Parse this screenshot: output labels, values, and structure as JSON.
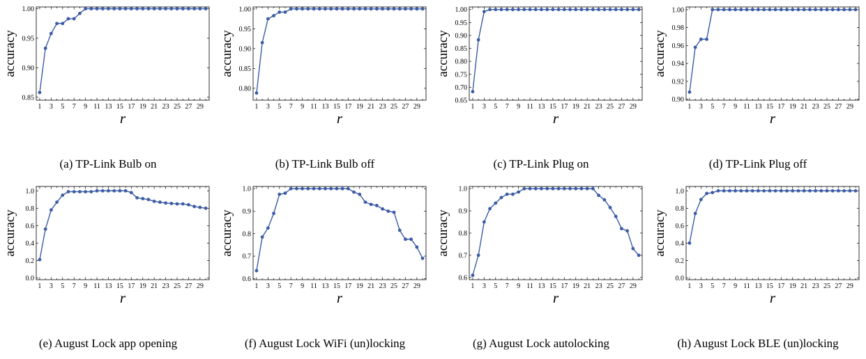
{
  "chart_data": [
    {
      "type": "line",
      "caption": "(a)  TP-Link Bulb on",
      "xlabel": "r",
      "ylabel": "accuracy",
      "x": [
        1,
        2,
        3,
        4,
        5,
        6,
        7,
        8,
        9,
        10,
        11,
        12,
        13,
        14,
        15,
        16,
        17,
        18,
        19,
        20,
        21,
        22,
        23,
        24,
        25,
        26,
        27,
        28,
        29,
        30
      ],
      "values": [
        0.858,
        0.933,
        0.958,
        0.975,
        0.975,
        0.983,
        0.983,
        0.992,
        1.0,
        1.0,
        1.0,
        1.0,
        1.0,
        1.0,
        1.0,
        1.0,
        1.0,
        1.0,
        1.0,
        1.0,
        1.0,
        1.0,
        1.0,
        1.0,
        1.0,
        1.0,
        1.0,
        1.0,
        1.0,
        1.0
      ],
      "xticks": [
        1,
        3,
        5,
        7,
        9,
        11,
        13,
        15,
        17,
        19,
        21,
        23,
        25,
        27,
        29
      ],
      "yticks": [
        0.85,
        0.9,
        0.95,
        1.0
      ],
      "ytick_labels": [
        "0.85",
        "0.90",
        "0.95",
        "1.00"
      ],
      "ylim": [
        0.845,
        1.003
      ]
    },
    {
      "type": "line",
      "caption": "(b)  TP-Link Bulb off",
      "xlabel": "r",
      "ylabel": "accuracy",
      "x": [
        1,
        2,
        3,
        4,
        5,
        6,
        7,
        8,
        9,
        10,
        11,
        12,
        13,
        14,
        15,
        16,
        17,
        18,
        19,
        20,
        21,
        22,
        23,
        24,
        25,
        26,
        27,
        28,
        29,
        30
      ],
      "values": [
        0.788,
        0.915,
        0.975,
        0.983,
        0.992,
        0.992,
        1.0,
        1.0,
        1.0,
        1.0,
        1.0,
        1.0,
        1.0,
        1.0,
        1.0,
        1.0,
        1.0,
        1.0,
        1.0,
        1.0,
        1.0,
        1.0,
        1.0,
        1.0,
        1.0,
        1.0,
        1.0,
        1.0,
        1.0,
        1.0
      ],
      "xticks": [
        1,
        3,
        5,
        7,
        9,
        11,
        13,
        15,
        17,
        19,
        21,
        23,
        25,
        27,
        29
      ],
      "yticks": [
        0.8,
        0.85,
        0.9,
        0.95,
        1.0
      ],
      "ytick_labels": [
        "0.80",
        "0.85",
        "0.90",
        "0.95",
        "1.00"
      ],
      "ylim": [
        0.77,
        1.005
      ]
    },
    {
      "type": "line",
      "caption": "(c)  TP-Link Plug on",
      "xlabel": "r",
      "ylabel": "accuracy",
      "x": [
        1,
        2,
        3,
        4,
        5,
        6,
        7,
        8,
        9,
        10,
        11,
        12,
        13,
        14,
        15,
        16,
        17,
        18,
        19,
        20,
        21,
        22,
        23,
        24,
        25,
        26,
        27,
        28,
        29,
        30
      ],
      "values": [
        0.683,
        0.883,
        0.992,
        1.0,
        1.0,
        1.0,
        1.0,
        1.0,
        1.0,
        1.0,
        1.0,
        1.0,
        1.0,
        1.0,
        1.0,
        1.0,
        1.0,
        1.0,
        1.0,
        1.0,
        1.0,
        1.0,
        1.0,
        1.0,
        1.0,
        1.0,
        1.0,
        1.0,
        1.0,
        1.0
      ],
      "xticks": [
        1,
        3,
        5,
        7,
        9,
        11,
        13,
        15,
        17,
        19,
        21,
        23,
        25,
        27,
        29
      ],
      "yticks": [
        0.65,
        0.7,
        0.75,
        0.8,
        0.85,
        0.9,
        0.95,
        1.0
      ],
      "ytick_labels": [
        "0.65",
        "0.70",
        "0.75",
        "0.80",
        "0.85",
        "0.90",
        "0.95",
        "1.00"
      ],
      "ylim": [
        0.65,
        1.01
      ]
    },
    {
      "type": "line",
      "caption": "(d)  TP-Link Plug off",
      "xlabel": "r",
      "ylabel": "accuracy",
      "x": [
        1,
        2,
        3,
        4,
        5,
        6,
        7,
        8,
        9,
        10,
        11,
        12,
        13,
        14,
        15,
        16,
        17,
        18,
        19,
        20,
        21,
        22,
        23,
        24,
        25,
        26,
        27,
        28,
        29,
        30
      ],
      "values": [
        0.908,
        0.958,
        0.967,
        0.967,
        1.0,
        1.0,
        1.0,
        1.0,
        1.0,
        1.0,
        1.0,
        1.0,
        1.0,
        1.0,
        1.0,
        1.0,
        1.0,
        1.0,
        1.0,
        1.0,
        1.0,
        1.0,
        1.0,
        1.0,
        1.0,
        1.0,
        1.0,
        1.0,
        1.0,
        1.0
      ],
      "xticks": [
        1,
        3,
        5,
        7,
        9,
        11,
        13,
        15,
        17,
        19,
        21,
        23,
        25,
        27,
        29
      ],
      "yticks": [
        0.9,
        0.92,
        0.94,
        0.96,
        0.98,
        1.0
      ],
      "ytick_labels": [
        "0.90",
        "0.92",
        "0.94",
        "0.96",
        "0.98",
        "1.00"
      ],
      "ylim": [
        0.899,
        1.003
      ]
    },
    {
      "type": "line",
      "caption": "(e)  August Lock app opening",
      "xlabel": "r",
      "ylabel": "accuracy",
      "x": [
        1,
        2,
        3,
        4,
        5,
        6,
        7,
        8,
        9,
        10,
        11,
        12,
        13,
        14,
        15,
        16,
        17,
        18,
        19,
        20,
        21,
        22,
        23,
        24,
        25,
        26,
        27,
        28,
        29,
        30
      ],
      "values": [
        0.21,
        0.56,
        0.78,
        0.87,
        0.95,
        0.99,
        0.99,
        0.99,
        0.99,
        0.99,
        1.0,
        1.0,
        1.0,
        1.0,
        1.0,
        1.0,
        0.98,
        0.92,
        0.91,
        0.9,
        0.88,
        0.87,
        0.86,
        0.855,
        0.85,
        0.85,
        0.84,
        0.82,
        0.81,
        0.8
      ],
      "xticks": [
        1,
        3,
        5,
        7,
        9,
        11,
        13,
        15,
        17,
        19,
        21,
        23,
        25,
        27,
        29
      ],
      "yticks": [
        0.0,
        0.2,
        0.4,
        0.6,
        0.8,
        1.0
      ],
      "ytick_labels": [
        "0.0",
        "0.2",
        "0.4",
        "0.6",
        "0.8",
        "1.0"
      ],
      "ylim": [
        -0.02,
        1.05
      ]
    },
    {
      "type": "line",
      "caption": "(f)  August Lock WiFi (un)locking",
      "xlabel": "r",
      "ylabel": "accuracy",
      "x": [
        1,
        2,
        3,
        4,
        5,
        6,
        7,
        8,
        9,
        10,
        11,
        12,
        13,
        14,
        15,
        16,
        17,
        18,
        19,
        20,
        21,
        22,
        23,
        24,
        25,
        26,
        27,
        28,
        29,
        30
      ],
      "values": [
        0.635,
        0.785,
        0.825,
        0.89,
        0.975,
        0.98,
        1.0,
        1.0,
        1.0,
        1.0,
        1.0,
        1.0,
        1.0,
        1.0,
        1.0,
        1.0,
        1.0,
        0.985,
        0.975,
        0.94,
        0.93,
        0.925,
        0.91,
        0.9,
        0.895,
        0.815,
        0.775,
        0.775,
        0.74,
        0.69
      ],
      "xticks": [
        1,
        3,
        5,
        7,
        9,
        11,
        13,
        15,
        17,
        19,
        21,
        23,
        25,
        27,
        29
      ],
      "yticks": [
        0.6,
        0.7,
        0.8,
        0.9,
        1.0
      ],
      "ytick_labels": [
        "0.6",
        "0.7",
        "0.8",
        "0.9",
        "1.0"
      ],
      "ylim": [
        0.595,
        1.01
      ]
    },
    {
      "type": "line",
      "caption": "(g)  August Lock autolocking",
      "xlabel": "r",
      "ylabel": "accuracy",
      "x": [
        1,
        2,
        3,
        4,
        5,
        6,
        7,
        8,
        9,
        10,
        11,
        12,
        13,
        14,
        15,
        16,
        17,
        18,
        19,
        20,
        21,
        22,
        23,
        24,
        25,
        26,
        27,
        28,
        29,
        30
      ],
      "values": [
        0.61,
        0.7,
        0.85,
        0.91,
        0.935,
        0.96,
        0.975,
        0.975,
        0.985,
        1.0,
        1.0,
        1.0,
        1.0,
        1.0,
        1.0,
        1.0,
        1.0,
        1.0,
        1.0,
        1.0,
        1.0,
        1.0,
        0.97,
        0.95,
        0.915,
        0.875,
        0.82,
        0.81,
        0.73,
        0.7
      ],
      "xticks": [
        1,
        3,
        5,
        7,
        9,
        11,
        13,
        15,
        17,
        19,
        21,
        23,
        25,
        27,
        29
      ],
      "yticks": [
        0.6,
        0.7,
        0.8,
        0.9,
        1.0
      ],
      "ytick_labels": [
        "0.6",
        "0.7",
        "0.8",
        "0.9",
        "1.0"
      ],
      "ylim": [
        0.59,
        1.01
      ]
    },
    {
      "type": "line",
      "caption": "(h)  August Lock BLE (un)locking",
      "xlabel": "r",
      "ylabel": "accuracy",
      "x": [
        1,
        2,
        3,
        4,
        5,
        6,
        7,
        8,
        9,
        10,
        11,
        12,
        13,
        14,
        15,
        16,
        17,
        18,
        19,
        20,
        21,
        22,
        23,
        24,
        25,
        26,
        27,
        28,
        29,
        30
      ],
      "values": [
        0.4,
        0.74,
        0.9,
        0.97,
        0.98,
        1.0,
        1.0,
        1.0,
        1.0,
        1.0,
        1.0,
        1.0,
        1.0,
        1.0,
        1.0,
        1.0,
        1.0,
        1.0,
        1.0,
        1.0,
        1.0,
        1.0,
        1.0,
        1.0,
        1.0,
        1.0,
        1.0,
        1.0,
        1.0,
        1.0
      ],
      "xticks": [
        1,
        3,
        5,
        7,
        9,
        11,
        13,
        15,
        17,
        19,
        21,
        23,
        25,
        27,
        29
      ],
      "yticks": [
        0.0,
        0.2,
        0.4,
        0.6,
        0.8,
        1.0
      ],
      "ytick_labels": [
        "0.0",
        "0.2",
        "0.4",
        "0.6",
        "0.8",
        "1.0"
      ],
      "ylim": [
        -0.02,
        1.05
      ]
    }
  ],
  "colors": {
    "series": "#3b5ba5",
    "axis": "#000000"
  }
}
